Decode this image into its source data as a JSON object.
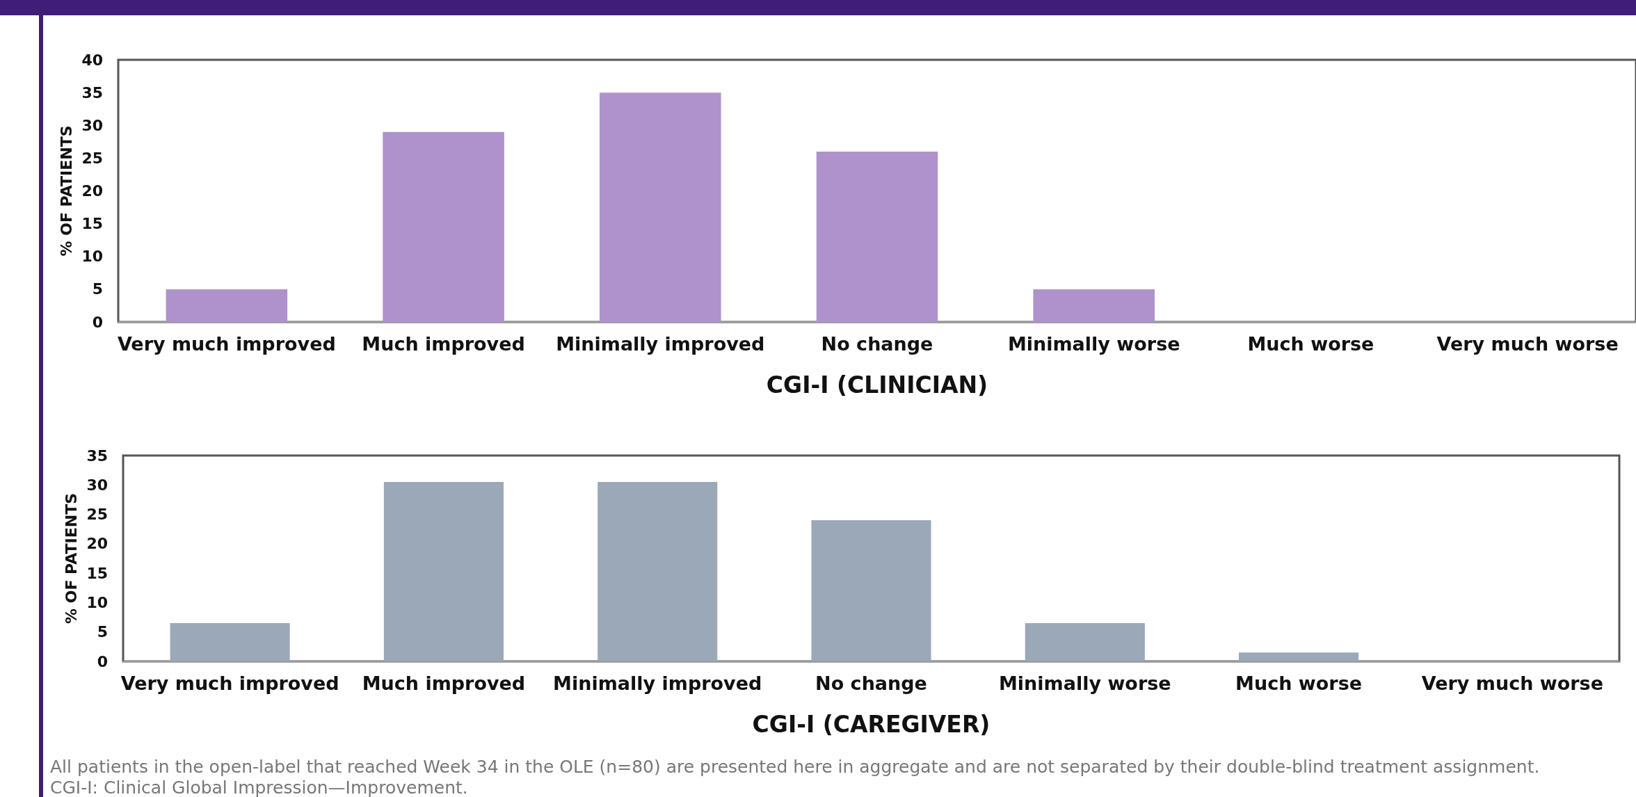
{
  "chart_data": [
    {
      "type": "bar",
      "xlabel": "CGI-I (CLINICIAN)",
      "ylabel": "% OF PATIENTS",
      "categories": [
        "Very much improved",
        "Much improved",
        "Minimally improved",
        "No change",
        "Minimally worse",
        "Much worse",
        "Very much worse"
      ],
      "values": [
        5,
        29,
        35,
        26,
        5,
        0,
        0
      ],
      "color": "#af92cc",
      "ylim": [
        0,
        40
      ],
      "yticks": [
        0,
        5,
        10,
        15,
        20,
        25,
        30,
        35,
        40
      ],
      "grid": false
    },
    {
      "type": "bar",
      "xlabel": "CGI-I (CAREGIVER)",
      "ylabel": "% OF PATIENTS",
      "categories": [
        "Very much improved",
        "Much improved",
        "Minimally improved",
        "No change",
        "Minimally worse",
        "Much worse",
        "Very much worse"
      ],
      "values": [
        6.5,
        30.5,
        30.5,
        24,
        6.5,
        1.5,
        0
      ],
      "color": "#9aa8b8",
      "ylim": [
        0,
        35
      ],
      "yticks": [
        0,
        5,
        10,
        15,
        20,
        25,
        30,
        35
      ],
      "grid": false,
      "annotations": [
        "All patients in the open-label that reached Week 34 in the OLE (n=80) are presented here in aggregate and are not separated by their double-blind treatment assignment.",
        "CGI-I: Clinical Global Impression—Improvement."
      ]
    }
  ]
}
